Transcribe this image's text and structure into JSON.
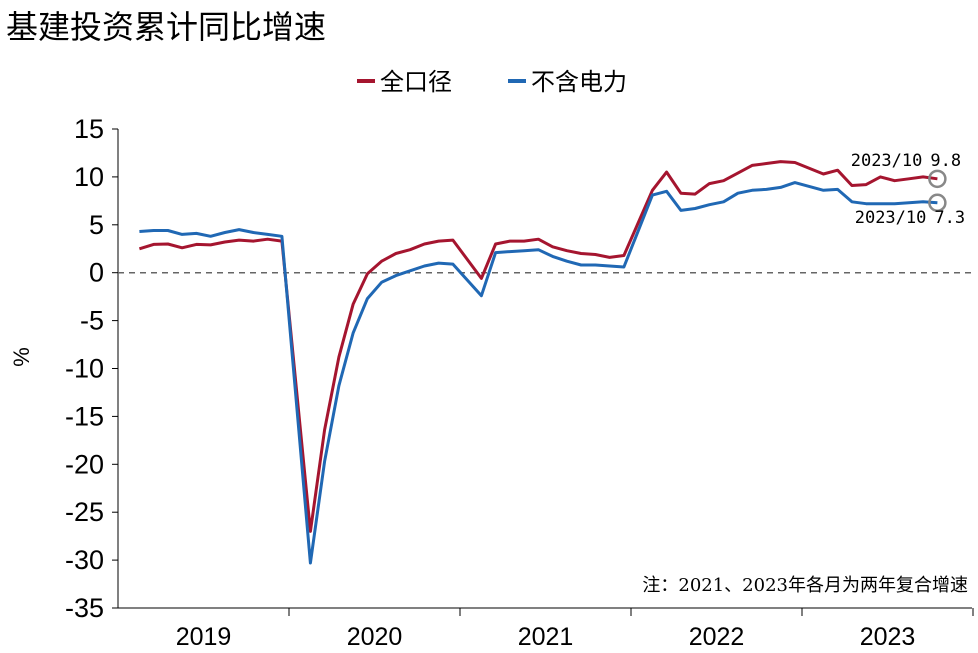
{
  "chart_data": {
    "type": "line",
    "title": "基建投资累计同比增速",
    "ylabel": "%",
    "xlabel": "",
    "ylim": [
      -35,
      15
    ],
    "yticks": [
      15,
      10,
      5,
      0,
      -5,
      -10,
      -15,
      -20,
      -25,
      -30,
      -35
    ],
    "year_labels": [
      "2019",
      "2020",
      "2021",
      "2022",
      "2023"
    ],
    "zero_line": "dashed",
    "grid": false,
    "legend_position": "top-center",
    "note": "注：2021、2023年各月为两年复合增速",
    "series": [
      {
        "name": "全口径",
        "color": "#a5152f",
        "points": [
          [
            "2019-02",
            2.5
          ],
          [
            "2019-03",
            2.95
          ],
          [
            "2019-04",
            3.0
          ],
          [
            "2019-05",
            2.6
          ],
          [
            "2019-06",
            2.95
          ],
          [
            "2019-07",
            2.9
          ],
          [
            "2019-08",
            3.2
          ],
          [
            "2019-09",
            3.4
          ],
          [
            "2019-10",
            3.3
          ],
          [
            "2019-11",
            3.5
          ],
          [
            "2019-12",
            3.3
          ],
          [
            "2020-02",
            -27.0
          ],
          [
            "2020-03",
            -16.4
          ],
          [
            "2020-04",
            -8.8
          ],
          [
            "2020-05",
            -3.3
          ],
          [
            "2020-06",
            -0.1
          ],
          [
            "2020-07",
            1.2
          ],
          [
            "2020-08",
            2.0
          ],
          [
            "2020-09",
            2.4
          ],
          [
            "2020-10",
            3.0
          ],
          [
            "2020-11",
            3.3
          ],
          [
            "2020-12",
            3.4
          ],
          [
            "2021-02",
            -0.6
          ],
          [
            "2021-03",
            3.0
          ],
          [
            "2021-04",
            3.3
          ],
          [
            "2021-05",
            3.3
          ],
          [
            "2021-06",
            3.5
          ],
          [
            "2021-07",
            2.7
          ],
          [
            "2021-08",
            2.3
          ],
          [
            "2021-09",
            2.0
          ],
          [
            "2021-10",
            1.9
          ],
          [
            "2021-11",
            1.6
          ],
          [
            "2021-12",
            1.8
          ],
          [
            "2022-02",
            8.6
          ],
          [
            "2022-03",
            10.5
          ],
          [
            "2022-04",
            8.3
          ],
          [
            "2022-05",
            8.2
          ],
          [
            "2022-06",
            9.3
          ],
          [
            "2022-07",
            9.6
          ],
          [
            "2022-08",
            10.4
          ],
          [
            "2022-09",
            11.2
          ],
          [
            "2022-10",
            11.4
          ],
          [
            "2022-11",
            11.6
          ],
          [
            "2022-12",
            11.5
          ],
          [
            "2023-02",
            10.3
          ],
          [
            "2023-03",
            10.7
          ],
          [
            "2023-04",
            9.1
          ],
          [
            "2023-05",
            9.2
          ],
          [
            "2023-06",
            10.0
          ],
          [
            "2023-07",
            9.6
          ],
          [
            "2023-08",
            9.8
          ],
          [
            "2023-09",
            10.0
          ],
          [
            "2023-10",
            9.8
          ]
        ]
      },
      {
        "name": "不含电力",
        "color": "#2068b4",
        "points": [
          [
            "2019-02",
            4.3
          ],
          [
            "2019-03",
            4.4
          ],
          [
            "2019-04",
            4.4
          ],
          [
            "2019-05",
            4.0
          ],
          [
            "2019-06",
            4.1
          ],
          [
            "2019-07",
            3.8
          ],
          [
            "2019-08",
            4.2
          ],
          [
            "2019-09",
            4.5
          ],
          [
            "2019-10",
            4.2
          ],
          [
            "2019-11",
            4.0
          ],
          [
            "2019-12",
            3.8
          ],
          [
            "2020-02",
            -30.3
          ],
          [
            "2020-03",
            -19.7
          ],
          [
            "2020-04",
            -11.8
          ],
          [
            "2020-05",
            -6.3
          ],
          [
            "2020-06",
            -2.7
          ],
          [
            "2020-07",
            -1.0
          ],
          [
            "2020-08",
            -0.3
          ],
          [
            "2020-09",
            0.2
          ],
          [
            "2020-10",
            0.7
          ],
          [
            "2020-11",
            1.0
          ],
          [
            "2020-12",
            0.9
          ],
          [
            "2021-02",
            -2.4
          ],
          [
            "2021-03",
            2.1
          ],
          [
            "2021-04",
            2.2
          ],
          [
            "2021-05",
            2.3
          ],
          [
            "2021-06",
            2.4
          ],
          [
            "2021-07",
            1.7
          ],
          [
            "2021-08",
            1.2
          ],
          [
            "2021-09",
            0.8
          ],
          [
            "2021-10",
            0.8
          ],
          [
            "2021-11",
            0.7
          ],
          [
            "2021-12",
            0.6
          ],
          [
            "2022-02",
            8.1
          ],
          [
            "2022-03",
            8.5
          ],
          [
            "2022-04",
            6.5
          ],
          [
            "2022-05",
            6.7
          ],
          [
            "2022-06",
            7.1
          ],
          [
            "2022-07",
            7.4
          ],
          [
            "2022-08",
            8.3
          ],
          [
            "2022-09",
            8.6
          ],
          [
            "2022-10",
            8.7
          ],
          [
            "2022-11",
            8.9
          ],
          [
            "2022-12",
            9.4
          ],
          [
            "2023-02",
            8.6
          ],
          [
            "2023-03",
            8.7
          ],
          [
            "2023-04",
            7.4
          ],
          [
            "2023-05",
            7.2
          ],
          [
            "2023-06",
            7.2
          ],
          [
            "2023-07",
            7.2
          ],
          [
            "2023-08",
            7.3
          ],
          [
            "2023-09",
            7.4
          ],
          [
            "2023-10",
            7.3
          ]
        ]
      }
    ],
    "annotations": [
      {
        "series": 0,
        "date": "2023-10",
        "label": "2023/10",
        "value_text": "9.8"
      },
      {
        "series": 1,
        "date": "2023-10",
        "label": "2023/10",
        "value_text": "7.3"
      }
    ]
  }
}
